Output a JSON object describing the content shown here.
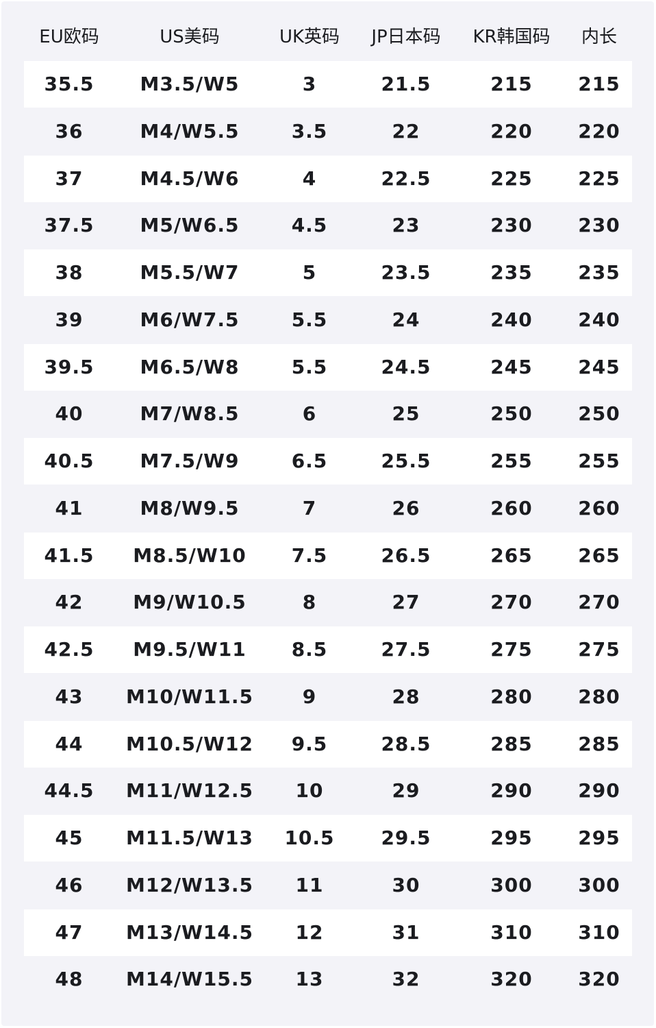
{
  "headers": [
    "EU欧码",
    "US美码",
    "UK英码",
    "JP日本码",
    "KR韩国码",
    "内长"
  ],
  "rows": [
    [
      "35.5",
      "M3.5/W5",
      "3",
      "21.5",
      "215",
      "215"
    ],
    [
      "36",
      "M4/W5.5",
      "3.5",
      "22",
      "220",
      "220"
    ],
    [
      "37",
      "M4.5/W6",
      "4",
      "22.5",
      "225",
      "225"
    ],
    [
      "37.5",
      "M5/W6.5",
      "4.5",
      "23",
      "230",
      "230"
    ],
    [
      "38",
      "M5.5/W7",
      "5",
      "23.5",
      "235",
      "235"
    ],
    [
      "39",
      "M6/W7.5",
      "5.5",
      "24",
      "240",
      "240"
    ],
    [
      "39.5",
      "M6.5/W8",
      "5.5",
      "24.5",
      "245",
      "245"
    ],
    [
      "40",
      "M7/W8.5",
      "6",
      "25",
      "250",
      "250"
    ],
    [
      "40.5",
      "M7.5/W9",
      "6.5",
      "25.5",
      "255",
      "255"
    ],
    [
      "41",
      "M8/W9.5",
      "7",
      "26",
      "260",
      "260"
    ],
    [
      "41.5",
      "M8.5/W10",
      "7.5",
      "26.5",
      "265",
      "265"
    ],
    [
      "42",
      "M9/W10.5",
      "8",
      "27",
      "270",
      "270"
    ],
    [
      "42.5",
      "M9.5/W11",
      "8.5",
      "27.5",
      "275",
      "275"
    ],
    [
      "43",
      "M10/W11.5",
      "9",
      "28",
      "280",
      "280"
    ],
    [
      "44",
      "M10.5/W12",
      "9.5",
      "28.5",
      "285",
      "285"
    ],
    [
      "44.5",
      "M11/W12.5",
      "10",
      "29",
      "290",
      "290"
    ],
    [
      "45",
      "M11.5/W13",
      "10.5",
      "29.5",
      "295",
      "295"
    ],
    [
      "46",
      "M12/W13.5",
      "11",
      "30",
      "300",
      "300"
    ],
    [
      "47",
      "M13/W14.5",
      "12",
      "31",
      "310",
      "310"
    ],
    [
      "48",
      "M14/W15.5",
      "13",
      "32",
      "320",
      "320"
    ]
  ],
  "colors": {
    "panel": "#f3f3f8",
    "stripe": "#ffffff",
    "text": "#1b1c20"
  }
}
